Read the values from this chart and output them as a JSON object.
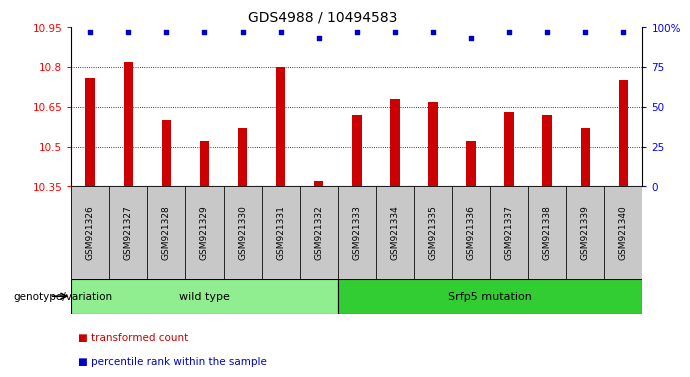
{
  "title": "GDS4988 / 10494583",
  "samples": [
    "GSM921326",
    "GSM921327",
    "GSM921328",
    "GSM921329",
    "GSM921330",
    "GSM921331",
    "GSM921332",
    "GSM921333",
    "GSM921334",
    "GSM921335",
    "GSM921336",
    "GSM921337",
    "GSM921338",
    "GSM921339",
    "GSM921340"
  ],
  "bar_values": [
    10.76,
    10.82,
    10.6,
    10.52,
    10.57,
    10.8,
    10.37,
    10.62,
    10.68,
    10.67,
    10.52,
    10.63,
    10.62,
    10.57,
    10.75
  ],
  "percentile_values": [
    97,
    97,
    97,
    97,
    97,
    97,
    93,
    97,
    97,
    97,
    93,
    97,
    97,
    97,
    97
  ],
  "bar_color": "#cc0000",
  "percentile_color": "#0000cc",
  "ymin": 10.35,
  "ymax": 10.95,
  "y_ticks_left": [
    10.35,
    10.5,
    10.65,
    10.8,
    10.95
  ],
  "right_yticks": [
    0,
    25,
    50,
    75,
    100
  ],
  "right_ytick_labels": [
    "0",
    "25",
    "50",
    "75",
    "100%"
  ],
  "groups": [
    {
      "label": "wild type",
      "start": 0,
      "end": 7,
      "color": "#90ee90"
    },
    {
      "label": "Srfp5 mutation",
      "start": 7,
      "end": 15,
      "color": "#32cd32"
    }
  ],
  "legend_items": [
    {
      "label": "transformed count",
      "color": "#cc0000"
    },
    {
      "label": "percentile rank within the sample",
      "color": "#0000cc"
    }
  ],
  "genotype_label": "genotype/variation",
  "title_fontsize": 10,
  "tick_fontsize": 7.5,
  "bar_width": 0.25,
  "xlabel_box_color": "#c8c8c8",
  "group_label_fontsize": 8,
  "legend_fontsize": 7.5
}
